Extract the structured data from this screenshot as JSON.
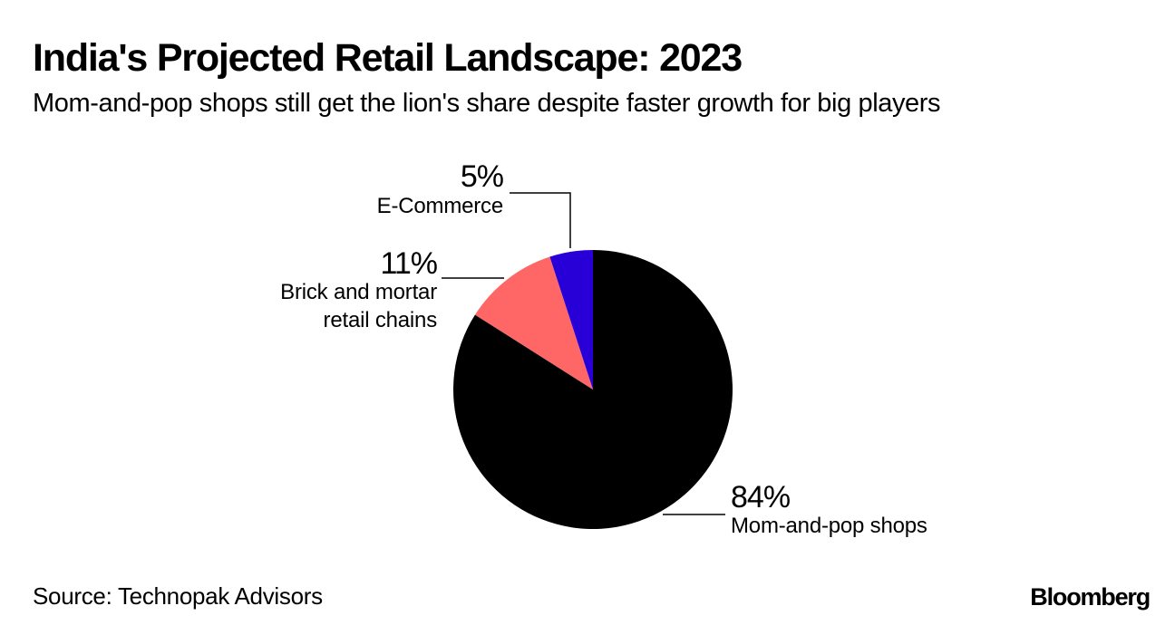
{
  "header": {
    "title": "India's Projected Retail Landscape: 2023",
    "subtitle": "Mom-and-pop shops still get the lion's share despite faster growth for big players"
  },
  "footer": {
    "source": "Source: Technopak Advisors",
    "brand": "Bloomberg"
  },
  "chart_data": {
    "type": "pie",
    "title": "India's Projected Retail Landscape: 2023",
    "subtitle": "Mom-and-pop shops still get the lion's share despite faster growth for big players",
    "start": "12 o'clock",
    "slices": [
      {
        "name": "Mom-and-pop shops",
        "value": 84,
        "label": "84%",
        "color": "#000000",
        "direction": "clockwise"
      },
      {
        "name": "Brick and mortar retail chains",
        "value": 11,
        "label": "11%",
        "label_lines": [
          "Brick and mortar",
          "retail chains"
        ],
        "color": "#ff6666"
      },
      {
        "name": "E-Commerce",
        "value": 5,
        "label": "5%",
        "label_lines": [
          "E-Commerce"
        ],
        "color": "#2800d7"
      }
    ],
    "source": "Source: Technopak Advisors"
  }
}
